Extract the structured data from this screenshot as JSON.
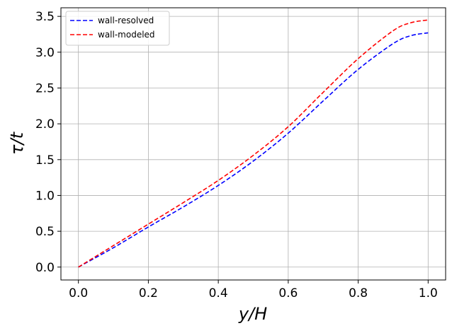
{
  "chart_data": {
    "type": "line",
    "xlabel": "y/H",
    "ylabel": "τ/t",
    "xlim": [
      -0.05,
      1.05
    ],
    "ylim": [
      -0.18,
      3.62
    ],
    "xticks": [
      0.0,
      0.2,
      0.4,
      0.6,
      0.8,
      1.0
    ],
    "xtick_labels": [
      "0.0",
      "0.2",
      "0.4",
      "0.6",
      "0.8",
      "1.0"
    ],
    "yticks": [
      0.0,
      0.5,
      1.0,
      1.5,
      2.0,
      2.5,
      3.0,
      3.5
    ],
    "ytick_labels": [
      "0.0",
      "0.5",
      "1.0",
      "1.5",
      "2.0",
      "2.5",
      "3.0",
      "3.5"
    ],
    "grid": true,
    "legend_position": "top-left",
    "series": [
      {
        "name": "wall-resolved",
        "color": "#0000ff",
        "linestyle": "dashed",
        "x": [
          0.0,
          0.1,
          0.2,
          0.3,
          0.4,
          0.5,
          0.6,
          0.7,
          0.8,
          0.9,
          0.95,
          1.0
        ],
        "y": [
          0.0,
          0.27,
          0.56,
          0.84,
          1.14,
          1.48,
          1.87,
          2.32,
          2.76,
          3.12,
          3.23,
          3.27
        ]
      },
      {
        "name": "wall-modeled",
        "color": "#ff0000",
        "linestyle": "dashed",
        "x": [
          0.0,
          0.1,
          0.2,
          0.3,
          0.4,
          0.5,
          0.6,
          0.7,
          0.8,
          0.9,
          0.95,
          1.0
        ],
        "y": [
          0.0,
          0.3,
          0.6,
          0.9,
          1.21,
          1.56,
          1.96,
          2.44,
          2.91,
          3.3,
          3.41,
          3.45
        ]
      }
    ]
  }
}
